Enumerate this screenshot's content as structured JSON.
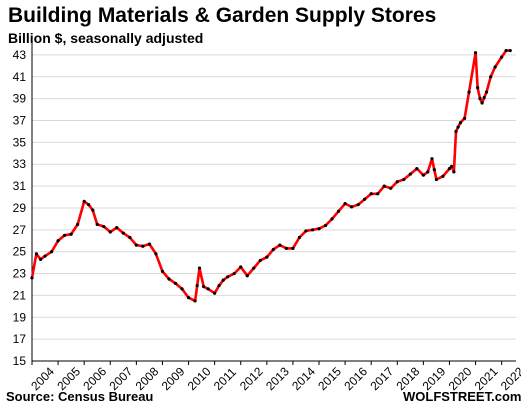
{
  "header": {
    "title": "Building Materials & Garden Supply Stores",
    "subtitle": "Billion $, seasonally adjusted"
  },
  "footer": {
    "source": "Source: Census Bureau",
    "brand": "WOLFSTREET.com"
  },
  "colors": {
    "line": "#ff0000",
    "markers": "#000000",
    "grid": "#d9d9d9",
    "axis": "#000000"
  },
  "chart_data": {
    "type": "line",
    "title": "Building Materials & Garden Supply Stores",
    "subtitle": "Billion $, seasonally adjusted",
    "xlabel": "",
    "ylabel": "",
    "ylim": [
      15,
      44
    ],
    "yticks": [
      15,
      17,
      19,
      21,
      23,
      25,
      27,
      29,
      31,
      33,
      35,
      37,
      39,
      41,
      43
    ],
    "xticks": [
      "2004",
      "2005",
      "2006",
      "2007",
      "2008",
      "2009",
      "2010",
      "2011",
      "2012",
      "2013",
      "2014",
      "2015",
      "2016",
      "2017",
      "2018",
      "2019",
      "2020",
      "2021",
      "2022"
    ],
    "grid": "horizontal",
    "legend": "none",
    "series": [
      {
        "x": [
          2004.0,
          2004.17,
          2004.33,
          2004.5,
          2004.75,
          2005.0,
          2005.25,
          2005.5,
          2005.75,
          2006.0,
          2006.17,
          2006.33,
          2006.5,
          2006.75,
          2007.0,
          2007.25,
          2007.5,
          2007.75,
          2008.0,
          2008.25,
          2008.5,
          2008.75,
          2009.0,
          2009.25,
          2009.5,
          2009.75,
          2010.0,
          2010.25,
          2010.33,
          2010.42,
          2010.58,
          2010.75,
          2011.0,
          2011.17,
          2011.33,
          2011.5,
          2011.75,
          2012.0,
          2012.25,
          2012.5,
          2012.75,
          2013.0,
          2013.25,
          2013.5,
          2013.75,
          2014.0,
          2014.25,
          2014.5,
          2014.75,
          2015.0,
          2015.25,
          2015.5,
          2015.75,
          2016.0,
          2016.25,
          2016.5,
          2016.75,
          2017.0,
          2017.25,
          2017.5,
          2017.75,
          2018.0,
          2018.25,
          2018.5,
          2018.75,
          2019.0,
          2019.17,
          2019.33,
          2019.42,
          2019.5,
          2019.75,
          2020.0,
          2020.08,
          2020.17,
          2020.25,
          2020.33,
          2020.42,
          2020.58,
          2020.75,
          2021.0,
          2021.08,
          2021.17,
          2021.25,
          2021.33,
          2021.42,
          2021.58,
          2021.75,
          2022.0,
          2022.17,
          2022.33
        ],
        "values": [
          22.6,
          24.8,
          24.3,
          24.6,
          25.0,
          26.0,
          26.5,
          26.6,
          27.5,
          29.6,
          29.3,
          28.8,
          27.5,
          27.3,
          26.8,
          27.2,
          26.7,
          26.3,
          25.6,
          25.5,
          25.7,
          24.8,
          23.2,
          22.5,
          22.1,
          21.6,
          20.8,
          20.5,
          21.9,
          23.5,
          21.8,
          21.6,
          21.2,
          21.9,
          22.4,
          22.7,
          23.0,
          23.6,
          22.8,
          23.5,
          24.2,
          24.5,
          25.2,
          25.6,
          25.3,
          25.3,
          26.3,
          26.9,
          27.0,
          27.1,
          27.4,
          28.0,
          28.7,
          29.4,
          29.1,
          29.3,
          29.8,
          30.3,
          30.3,
          31.0,
          30.8,
          31.4,
          31.6,
          32.1,
          32.6,
          32.0,
          32.3,
          33.5,
          32.5,
          31.6,
          31.9,
          32.6,
          32.8,
          32.3,
          36.0,
          36.4,
          36.8,
          37.2,
          39.6,
          43.2,
          40.0,
          39.0,
          38.6,
          39.1,
          39.6,
          41.0,
          41.9,
          42.8,
          43.4,
          43.4
        ]
      }
    ]
  }
}
